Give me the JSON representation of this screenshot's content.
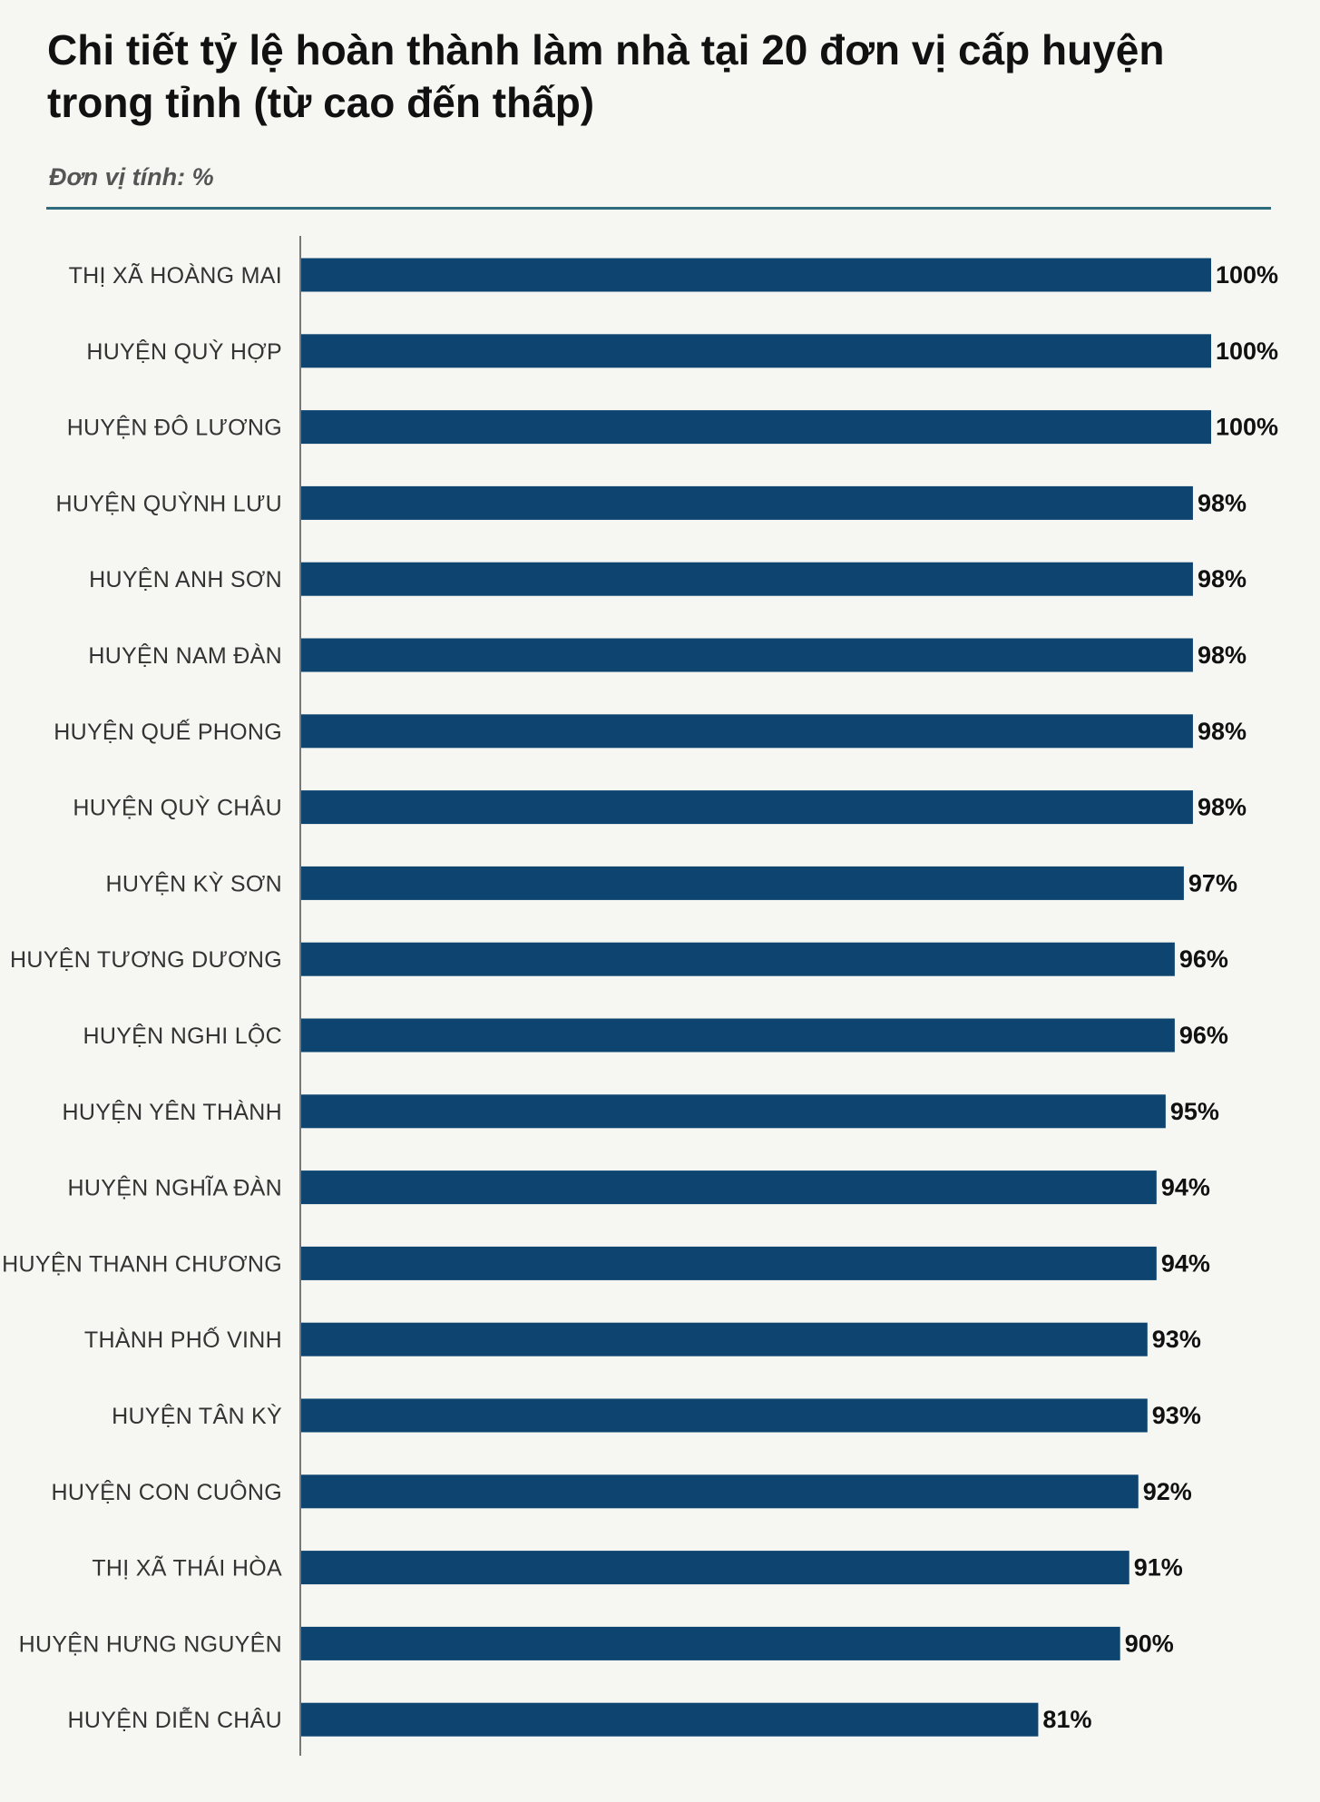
{
  "title": "Chi tiết tỷ lệ hoàn thành làm nhà tại 20 đơn vị cấp huyện trong tỉnh (từ cao đến thấp)",
  "unit_note": "Đơn vị tính: %",
  "colors": {
    "bar": "#0e4470",
    "axis": "#777777",
    "rule": "#2e6c7d",
    "background": "#f6f7f2"
  },
  "chart_data": {
    "type": "bar",
    "orientation": "horizontal",
    "title": "Chi tiết tỷ lệ hoàn thành làm nhà tại 20 đơn vị cấp huyện trong tỉnh (từ cao đến thấp)",
    "xlabel": "",
    "ylabel": "",
    "xlim": [
      0,
      100
    ],
    "grid": false,
    "categories": [
      "THỊ XÃ HOÀNG MAI",
      "HUYỆN QUỲ HỢP",
      "HUYỆN ĐÔ LƯƠNG",
      "HUYỆN QUỲNH LƯU",
      "HUYỆN ANH SƠN",
      "HUYỆN NAM ĐÀN",
      "HUYỆN QUẾ PHONG",
      "HUYỆN QUỲ CHÂU",
      "HUYỆN KỲ SƠN",
      "HUYỆN TƯƠNG DƯƠNG",
      "HUYỆN NGHI LỘC",
      "HUYỆN YÊN THÀNH",
      "HUYỆN NGHĨA ĐÀN",
      "HUYỆN THANH CHƯƠNG",
      "THÀNH PHỐ VINH",
      "HUYỆN TÂN KỲ",
      "HUYỆN CON CUÔNG",
      "THỊ XÃ THÁI HÒA",
      "HUYỆN HƯNG NGUYÊN",
      "HUYỆN DIỄN CHÂU"
    ],
    "values": [
      100,
      100,
      100,
      98,
      98,
      98,
      98,
      98,
      97,
      96,
      96,
      95,
      94,
      94,
      93,
      93,
      92,
      91,
      90,
      81
    ],
    "value_labels": [
      "100%",
      "100%",
      "100%",
      "98%",
      "98%",
      "98%",
      "98%",
      "98%",
      "97%",
      "96%",
      "96%",
      "95%",
      "94%",
      "94%",
      "93%",
      "93%",
      "92%",
      "91%",
      "90%",
      "81%"
    ]
  }
}
